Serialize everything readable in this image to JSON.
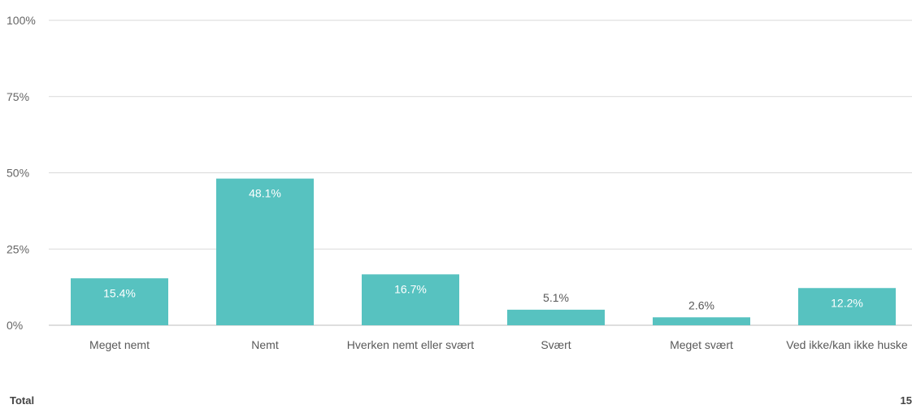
{
  "chart_data": {
    "type": "bar",
    "categories": [
      "Meget nemt",
      "Nemt",
      "Hverken nemt eller svært",
      "Svært",
      "Meget svært",
      "Ved ikke/kan ikke huske"
    ],
    "values": [
      15.4,
      48.1,
      16.7,
      5.1,
      2.6,
      12.2
    ],
    "data_labels": [
      "15.4%",
      "48.1%",
      "16.7%",
      "5.1%",
      "2.6%",
      "12.2%"
    ],
    "yticks": [
      "0%",
      "25%",
      "50%",
      "75%",
      "100%"
    ],
    "ylim": [
      0,
      100
    ],
    "grid": true,
    "bar_color": "#57c2c0"
  },
  "footer": {
    "total_label": "Total",
    "total_value": "15"
  }
}
